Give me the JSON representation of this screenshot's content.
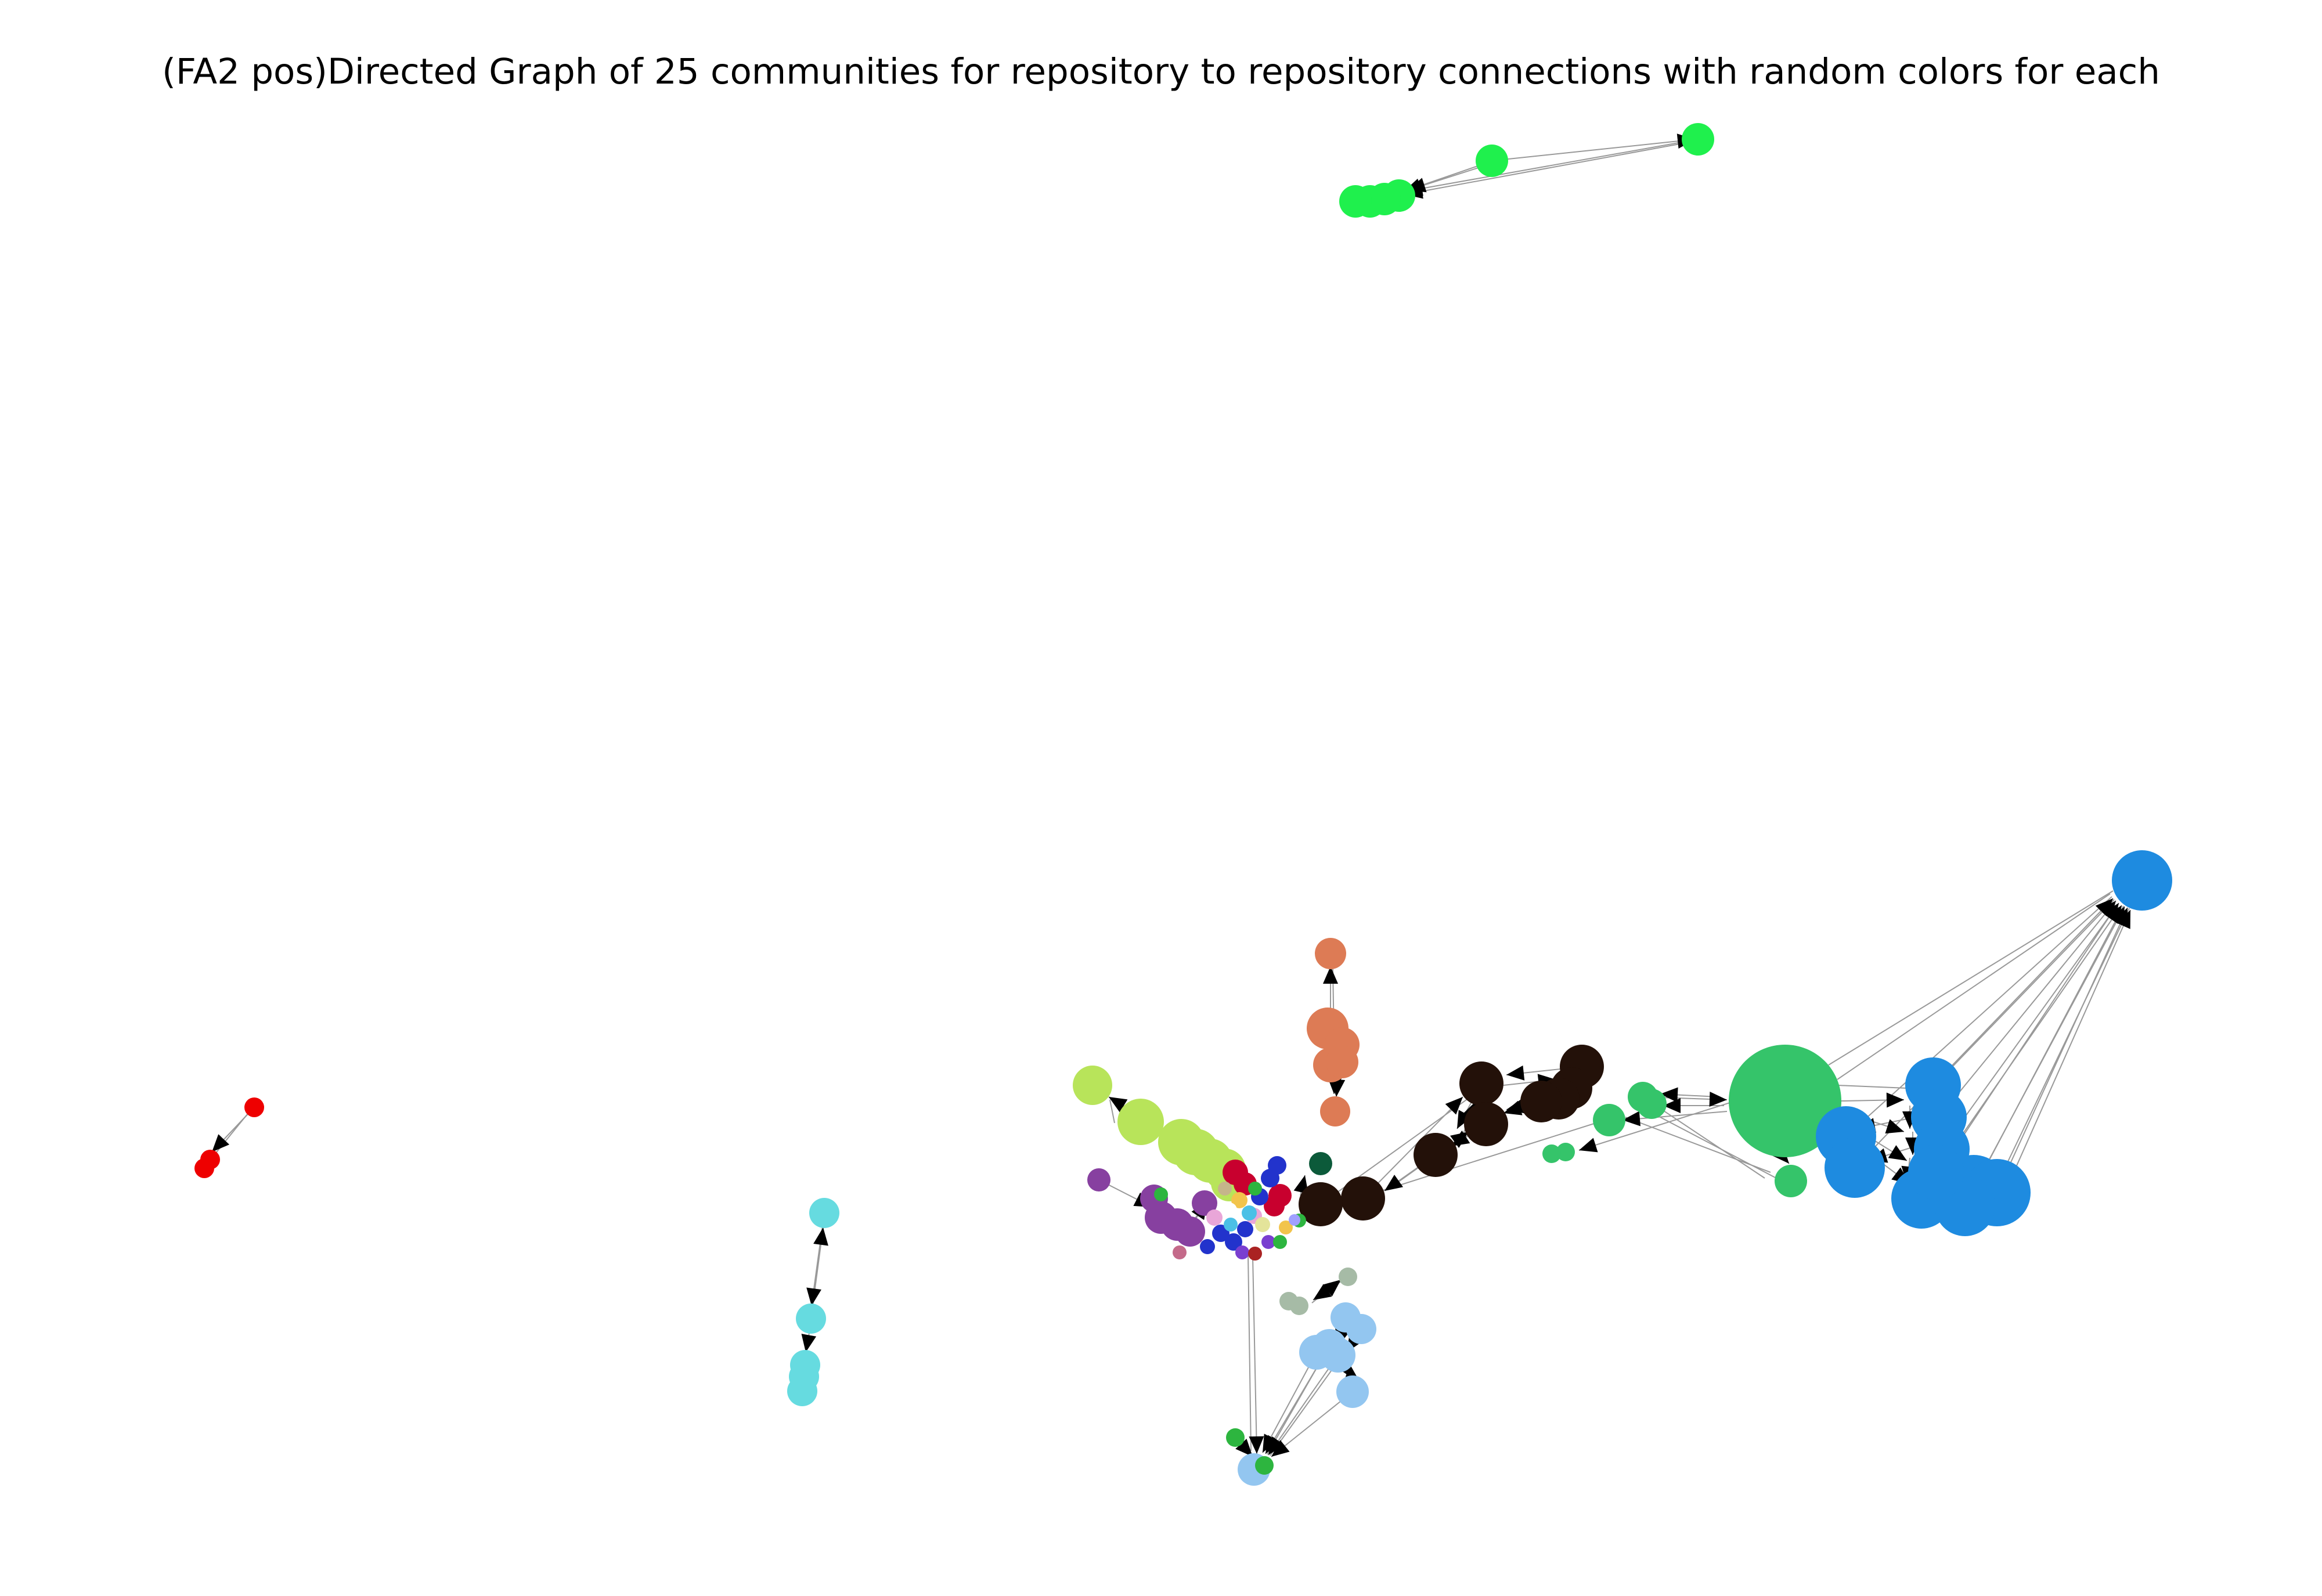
{
  "figure": {
    "title": "(FA2 pos)Directed Graph of 25 communities for repository to repository connections with random colors for each"
  },
  "graph": {
    "type": "directed-network",
    "layout": "ForceAtlas2",
    "community_count": 25,
    "edge_color": "#999999",
    "arrow_color": "#000000"
  }
}
